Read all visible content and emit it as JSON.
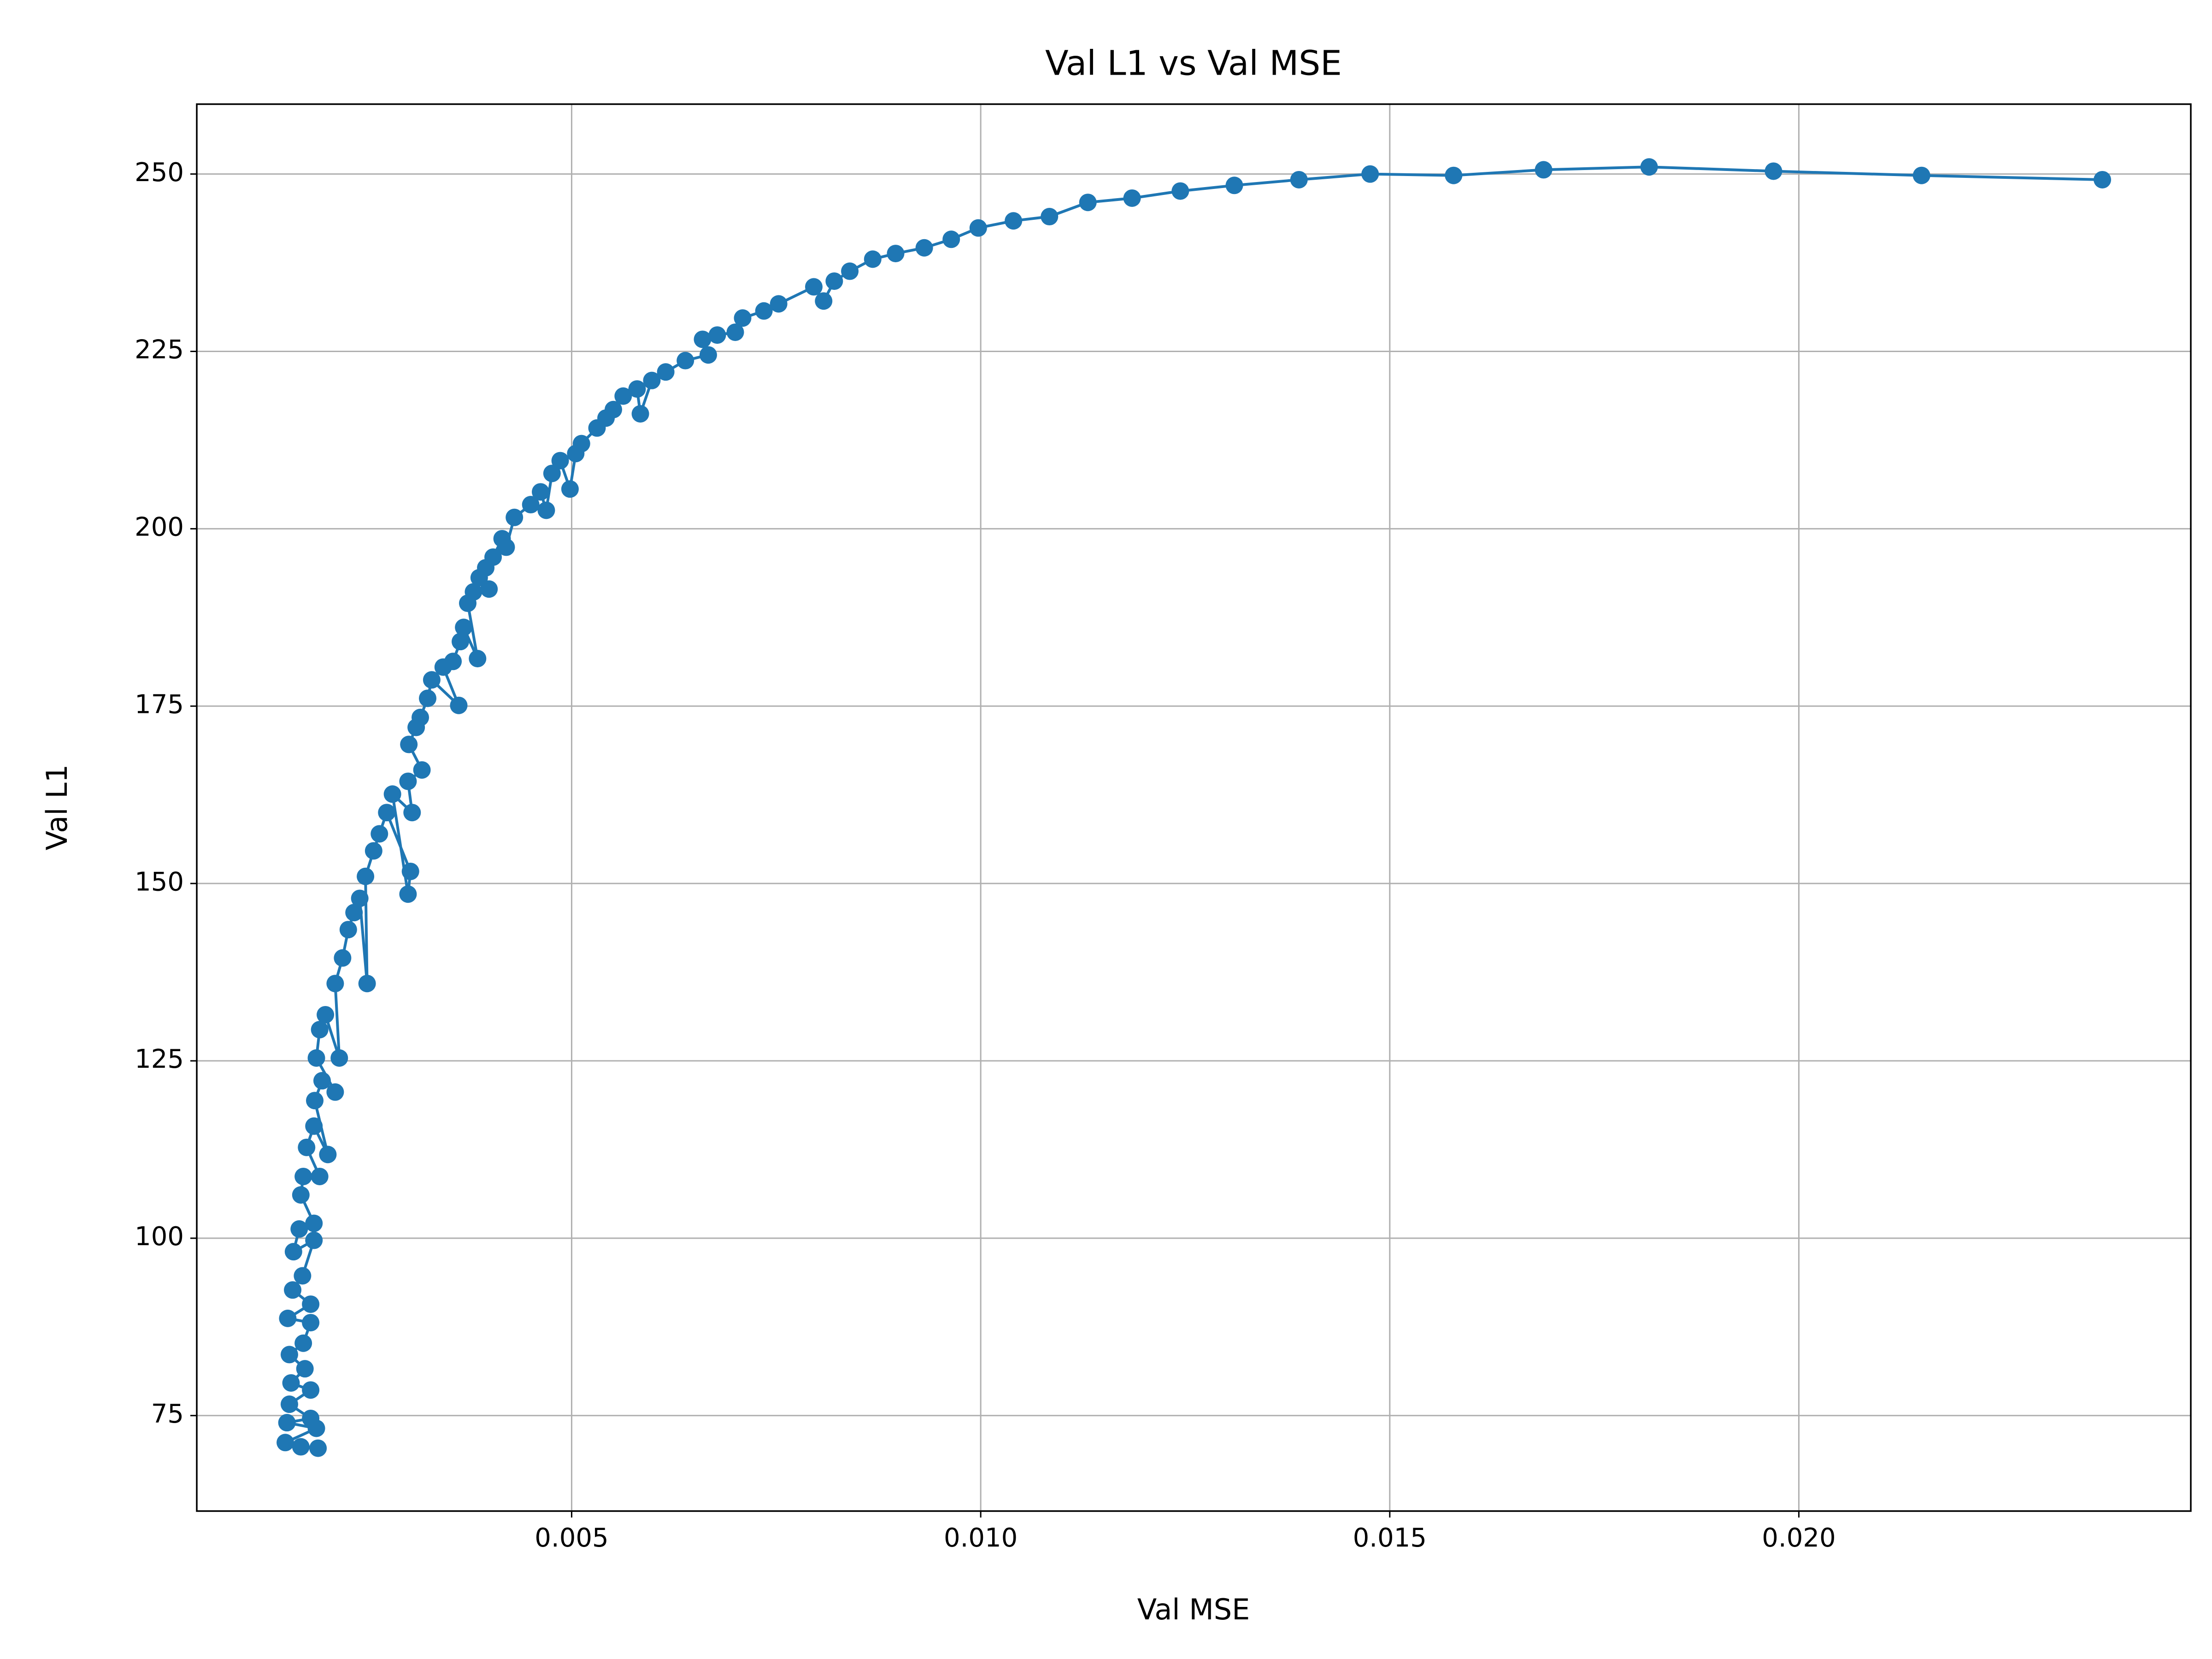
{
  "chart_data": {
    "type": "line",
    "title": "Val L1 vs Val MSE",
    "x_label": "Val MSE",
    "y_label": "Val L1",
    "x": [
      0.02371,
      0.0215,
      0.01969,
      0.01817,
      0.01688,
      0.01578,
      0.01476,
      0.01389,
      0.0131,
      0.01244,
      0.01185,
      0.01131,
      0.01084,
      0.0104,
      0.00997,
      0.00964,
      0.00931,
      0.00896,
      0.00868,
      0.0084,
      0.00821,
      0.00808,
      0.00796,
      0.00753,
      0.00735,
      0.00709,
      0.007,
      0.00678,
      0.0066,
      0.00667,
      0.00639,
      0.00615,
      0.00598,
      0.00584,
      0.0058,
      0.00563,
      0.00551,
      0.00542,
      0.00531,
      0.00512,
      0.00505,
      0.00498,
      0.00486,
      0.00476,
      0.00469,
      0.00462,
      0.0045,
      0.0043,
      0.0042,
      0.00415,
      0.00404,
      0.00395,
      0.00387,
      0.00399,
      0.0038,
      0.00373,
      0.00385,
      0.00368,
      0.00364,
      0.00355,
      0.00343,
      0.00362,
      0.00329,
      0.00324,
      0.00315,
      0.0031,
      0.00301,
      0.00317,
      0.003,
      0.00305,
      0.00281,
      0.003,
      0.00303,
      0.00274,
      0.00265,
      0.00258,
      0.00248,
      0.0025,
      0.00241,
      0.00234,
      0.00227,
      0.0022,
      0.00211,
      0.00216,
      0.00199,
      0.00192,
      0.00188,
      0.00211,
      0.00195,
      0.00186,
      0.00202,
      0.00185,
      0.00176,
      0.00192,
      0.00172,
      0.00169,
      0.00185,
      0.00167,
      0.0016,
      0.00185,
      0.00171,
      0.00159,
      0.00181,
      0.00153,
      0.00181,
      0.00172,
      0.00155,
      0.00174,
      0.00157,
      0.00181,
      0.00155,
      0.00181,
      0.00152,
      0.00188,
      0.0015,
      0.00169,
      0.0019
    ],
    "values": [
      249.2,
      249.8,
      250.4,
      251.0,
      250.6,
      249.8,
      250.0,
      249.2,
      248.4,
      247.6,
      246.6,
      246.0,
      244.0,
      243.4,
      242.4,
      240.8,
      239.6,
      238.8,
      238.0,
      236.3,
      234.9,
      232.1,
      234.1,
      231.7,
      230.7,
      229.7,
      227.7,
      227.3,
      226.7,
      224.5,
      223.7,
      222.1,
      220.9,
      216.2,
      219.7,
      218.7,
      216.8,
      215.6,
      214.2,
      212.0,
      210.6,
      205.6,
      209.6,
      207.8,
      202.6,
      205.2,
      203.4,
      201.6,
      197.4,
      198.6,
      196.0,
      194.5,
      193.1,
      191.5,
      191.1,
      189.5,
      181.7,
      186.1,
      184.1,
      181.3,
      180.5,
      175.1,
      178.7,
      176.1,
      173.4,
      172.0,
      169.6,
      166.0,
      164.4,
      160.0,
      162.6,
      148.5,
      151.7,
      160.0,
      157.0,
      154.6,
      151.0,
      135.9,
      147.9,
      145.9,
      143.5,
      139.5,
      135.9,
      125.4,
      131.5,
      129.4,
      125.4,
      120.6,
      122.2,
      119.4,
      111.8,
      115.8,
      112.8,
      108.7,
      108.7,
      106.1,
      102.1,
      101.3,
      98.1,
      99.7,
      94.7,
      92.7,
      90.7,
      88.7,
      88.1,
      85.2,
      83.6,
      81.6,
      79.6,
      78.6,
      76.6,
      74.6,
      74.0,
      73.2,
      71.2,
      70.6,
      70.4
    ],
    "color": "#1f77b4",
    "xlim": [
      0.000418,
      0.024791
    ],
    "xticks": [
      0.005,
      {
        "value": 0.01,
        "label": "0.010"
      },
      0.015,
      {
        "value": 0.02,
        "label": "0.020"
      }
    ],
    "ylim": [
      61.54,
      259.85
    ],
    "yticks": [
      75,
      100,
      125,
      150,
      175,
      200,
      225,
      250
    ],
    "grid": true
  }
}
